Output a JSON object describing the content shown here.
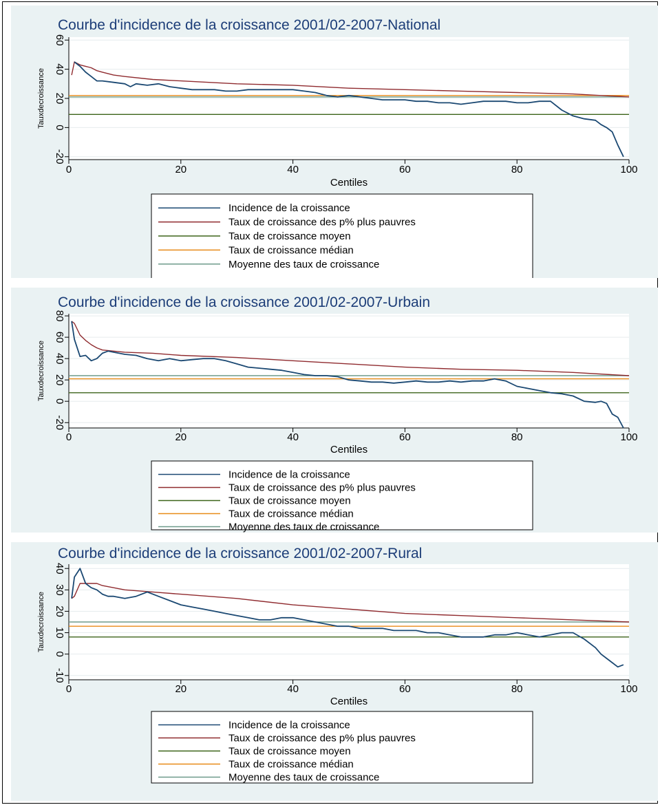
{
  "colors": {
    "background": "#eaf2f3",
    "plot_region": "#ffffff",
    "title": "#1c3d78",
    "incidence": "#1a4872",
    "poorest": "#8f2a2e",
    "mean_rate": "#3b6318",
    "median_rate": "#e88a17",
    "mean_of_rates": "#6d9a8a"
  },
  "chart_data": [
    {
      "type": "line",
      "title": "Courbe d'incidence de la croissance 2001/02-2007-National",
      "xlabel": "Centiles",
      "ylabel": "Tauxdecroissance",
      "xlim": [
        0,
        100
      ],
      "ylim": [
        -22,
        62
      ],
      "xticks": [
        "0",
        "20",
        "40",
        "60",
        "80",
        "100"
      ],
      "yticks": [
        "-20",
        "0",
        "20",
        "40",
        "60"
      ],
      "grid": true,
      "legend_position": "bottom",
      "series": [
        {
          "name": "Incidence de la croissance",
          "key": "incidence",
          "x": [
            1,
            2,
            3,
            4,
            5,
            6,
            8,
            10,
            11,
            12,
            14,
            16,
            18,
            20,
            22,
            24,
            26,
            28,
            30,
            32,
            34,
            36,
            38,
            40,
            42,
            44,
            46,
            48,
            50,
            52,
            54,
            56,
            58,
            60,
            62,
            64,
            66,
            68,
            70,
            72,
            74,
            76,
            78,
            80,
            82,
            84,
            86,
            88,
            90,
            92,
            94,
            95,
            96,
            97,
            98,
            99
          ],
          "y": [
            45,
            42,
            38,
            35,
            32,
            32,
            31,
            30,
            28,
            30,
            29,
            30,
            28,
            27,
            26,
            26,
            26,
            25,
            25,
            26,
            26,
            26,
            26,
            26,
            25,
            24,
            22,
            21,
            22,
            21,
            20,
            19,
            19,
            19,
            18,
            18,
            17,
            17,
            16,
            17,
            18,
            18,
            18,
            17,
            17,
            18,
            18,
            12,
            8,
            6,
            5,
            2,
            0,
            -3,
            -12,
            -20
          ]
        },
        {
          "name": "Taux de croissance des p% plus pauvres",
          "key": "poorest",
          "x": [
            0.5,
            1,
            2,
            3,
            4,
            5,
            6,
            8,
            10,
            15,
            20,
            30,
            40,
            50,
            60,
            70,
            80,
            85,
            90,
            95,
            100
          ],
          "y": [
            36,
            45,
            43,
            42,
            41,
            39,
            38,
            36,
            35,
            33,
            32,
            30,
            29,
            27,
            26,
            25,
            24,
            23.5,
            23,
            22,
            21
          ]
        },
        {
          "name": "Taux de croissance moyen",
          "key": "mean_rate",
          "x": [
            0,
            100
          ],
          "y": [
            9,
            9
          ]
        },
        {
          "name": "Taux de croissance médian",
          "key": "median_rate",
          "x": [
            0,
            100
          ],
          "y": [
            22,
            22
          ]
        },
        {
          "name": "Moyenne des taux de croissance",
          "key": "mean_of_rates",
          "x": [
            0,
            100
          ],
          "y": [
            21,
            21
          ]
        }
      ]
    },
    {
      "type": "line",
      "title": "Courbe d'incidence de la croissance 2001/02-2007-Urbain",
      "xlabel": "Centiles",
      "ylabel": "Tauxdecroissance",
      "xlim": [
        0,
        100
      ],
      "ylim": [
        -25,
        82
      ],
      "xticks": [
        "0",
        "20",
        "40",
        "60",
        "80",
        "100"
      ],
      "yticks": [
        "-20",
        "0",
        "20",
        "40",
        "60",
        "80"
      ],
      "grid": true,
      "legend_position": "bottom",
      "series": [
        {
          "name": "Incidence de la croissance",
          "key": "incidence",
          "x": [
            0.5,
            1,
            2,
            3,
            4,
            5,
            6,
            7,
            8,
            10,
            12,
            14,
            16,
            18,
            20,
            22,
            24,
            26,
            28,
            30,
            32,
            34,
            36,
            38,
            40,
            42,
            44,
            46,
            48,
            50,
            52,
            54,
            56,
            58,
            60,
            62,
            64,
            66,
            68,
            70,
            72,
            74,
            76,
            78,
            80,
            82,
            84,
            86,
            88,
            90,
            92,
            94,
            95,
            96,
            97,
            98,
            99
          ],
          "y": [
            75,
            58,
            42,
            43,
            38,
            40,
            45,
            47,
            46,
            44,
            43,
            40,
            38,
            40,
            38,
            39,
            40,
            40,
            38,
            35,
            32,
            31,
            30,
            29,
            27,
            25,
            24,
            24,
            23,
            20,
            19,
            18,
            18,
            17,
            18,
            19,
            18,
            18,
            19,
            18,
            19,
            19,
            21,
            19,
            14,
            12,
            10,
            8,
            7,
            5,
            0,
            -1,
            0,
            -2,
            -12,
            -15,
            -25
          ]
        },
        {
          "name": "Taux de croissance des p% plus pauvres",
          "key": "poorest",
          "x": [
            0.5,
            1,
            2,
            3,
            4,
            5,
            6,
            8,
            10,
            15,
            20,
            30,
            40,
            50,
            60,
            70,
            80,
            90,
            100
          ],
          "y": [
            75,
            73,
            62,
            57,
            53,
            50,
            48,
            47,
            46,
            45,
            43,
            41,
            38,
            35,
            32,
            30,
            29,
            27,
            24
          ]
        },
        {
          "name": "Taux de croissance moyen",
          "key": "mean_rate",
          "x": [
            0,
            100
          ],
          "y": [
            8,
            8
          ]
        },
        {
          "name": "Taux de croissance médian",
          "key": "median_rate",
          "x": [
            0,
            100
          ],
          "y": [
            21,
            21
          ]
        },
        {
          "name": "Moyenne des taux de croissance",
          "key": "mean_of_rates",
          "x": [
            0,
            100
          ],
          "y": [
            24,
            24
          ]
        }
      ]
    },
    {
      "type": "line",
      "title": "Courbe d'incidence de la croissance 2001/02-2007-Rural",
      "xlabel": "Centiles",
      "ylabel": "Tauxdecroissance",
      "xlim": [
        0,
        100
      ],
      "ylim": [
        -12,
        42
      ],
      "xticks": [
        "0",
        "20",
        "40",
        "60",
        "80",
        "100"
      ],
      "yticks": [
        "-10",
        "0",
        "10",
        "20",
        "30",
        "40"
      ],
      "grid": true,
      "legend_position": "bottom",
      "series": [
        {
          "name": "Incidence de la croissance",
          "key": "incidence",
          "x": [
            0.5,
            1,
            2,
            3,
            4,
            5,
            6,
            7,
            8,
            10,
            12,
            14,
            16,
            18,
            20,
            22,
            24,
            26,
            28,
            30,
            32,
            34,
            36,
            38,
            40,
            42,
            44,
            46,
            48,
            50,
            52,
            54,
            56,
            58,
            60,
            62,
            64,
            66,
            68,
            70,
            72,
            74,
            76,
            78,
            80,
            82,
            84,
            86,
            88,
            90,
            92,
            94,
            95,
            96,
            97,
            98,
            99
          ],
          "y": [
            26,
            36,
            40,
            33,
            31,
            30,
            28,
            27,
            27,
            26,
            27,
            29,
            27,
            25,
            23,
            22,
            21,
            20,
            19,
            18,
            17,
            16,
            16,
            17,
            17,
            16,
            15,
            14,
            13,
            13,
            12,
            12,
            12,
            11,
            11,
            11,
            10,
            10,
            9,
            8,
            8,
            8,
            9,
            9,
            10,
            9,
            8,
            9,
            10,
            10,
            7,
            3,
            0,
            -2,
            -4,
            -6,
            -5
          ]
        },
        {
          "name": "Taux de croissance des p% plus pauvres",
          "key": "poorest",
          "x": [
            0.5,
            1,
            2,
            3,
            4,
            5,
            6,
            8,
            10,
            15,
            20,
            30,
            40,
            50,
            60,
            70,
            80,
            90,
            100
          ],
          "y": [
            26,
            27,
            33,
            33,
            33,
            33,
            32,
            31,
            30,
            29,
            28,
            26,
            23,
            21,
            19,
            18,
            17,
            16,
            15
          ]
        },
        {
          "name": "Taux de croissance moyen",
          "key": "mean_rate",
          "x": [
            0,
            100
          ],
          "y": [
            8,
            8
          ]
        },
        {
          "name": "Taux de croissance médian",
          "key": "median_rate",
          "x": [
            0,
            100
          ],
          "y": [
            13,
            13
          ]
        },
        {
          "name": "Moyenne des taux de croissance",
          "key": "mean_of_rates",
          "x": [
            0,
            100
          ],
          "y": [
            15,
            15
          ]
        }
      ]
    }
  ]
}
